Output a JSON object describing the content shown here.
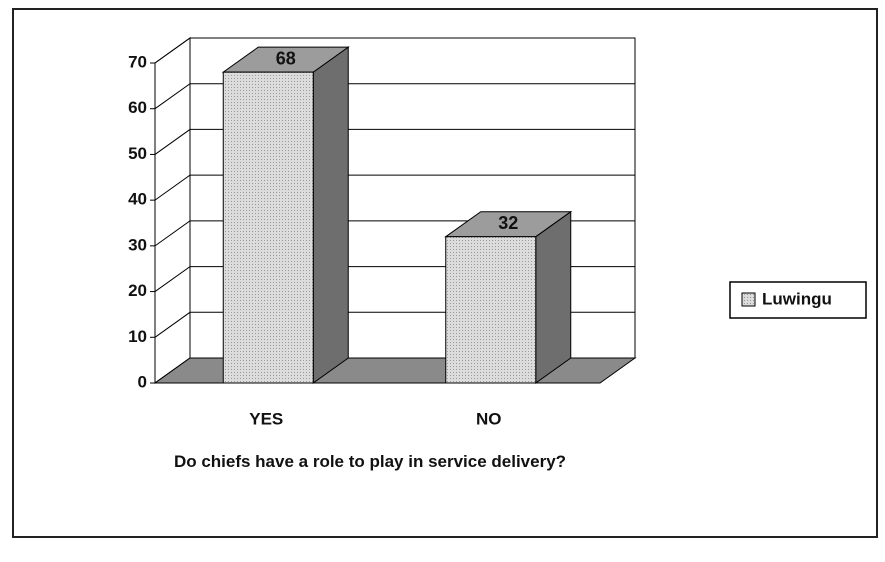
{
  "chart_data": {
    "type": "bar",
    "x_label": "Do chiefs have a role to play in service delivery?",
    "categories": [
      "YES",
      "NO"
    ],
    "series": [
      {
        "name": "Luwingu",
        "color": "#d6d6d6",
        "values": [
          68,
          32
        ]
      }
    ],
    "ylim": [
      0,
      70
    ],
    "yticks": [
      0,
      10,
      20,
      30,
      40,
      50,
      60,
      70
    ],
    "grid": true,
    "legend": "right"
  }
}
